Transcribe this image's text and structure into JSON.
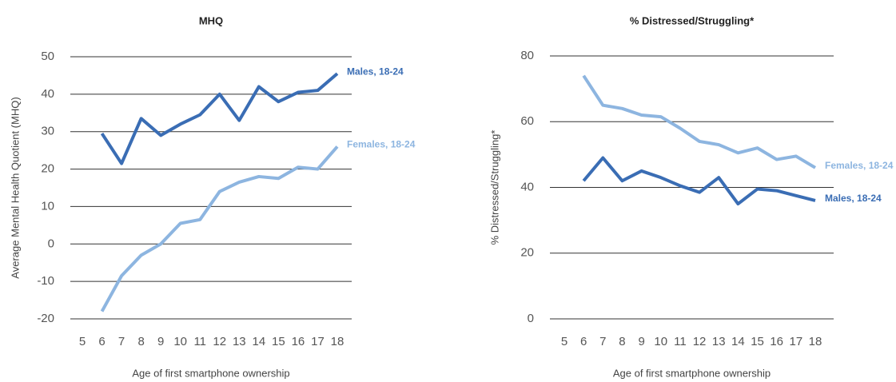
{
  "chart_data": [
    {
      "type": "line",
      "title": "MHQ",
      "x_label": "Age of first smartphone ownership",
      "y_label": "Average Mental Health Quotient (MHQ)",
      "x": [
        6,
        7,
        8,
        9,
        10,
        11,
        12,
        13,
        14,
        15,
        16,
        17,
        18
      ],
      "series": [
        {
          "name": "Males, 18-24",
          "color": "#3a6db4",
          "values": [
            29.5,
            21.5,
            33.5,
            29,
            32,
            34.5,
            40,
            33,
            42,
            38,
            40.5,
            41,
            45.5
          ]
        },
        {
          "name": "Females, 18-24",
          "color": "#8db5e0",
          "values": [
            -18,
            -8.5,
            -3,
            0,
            5.5,
            6.5,
            14,
            16.5,
            18,
            17.5,
            20.5,
            20,
            26
          ]
        }
      ],
      "xlim": [
        5,
        18
      ],
      "xticks": [
        5,
        6,
        7,
        8,
        9,
        10,
        11,
        12,
        13,
        14,
        15,
        16,
        17,
        18
      ],
      "ylim": [
        -20,
        50
      ],
      "yticks": [
        -20,
        -10,
        0,
        10,
        20,
        30,
        40,
        50
      ],
      "grid": true
    },
    {
      "type": "line",
      "title": "% Distressed/Struggling*",
      "x_label": "Age of first smartphone ownership",
      "y_label": "% Distressed/Struggling*",
      "x": [
        6,
        7,
        8,
        9,
        10,
        11,
        12,
        13,
        14,
        15,
        16,
        17,
        18
      ],
      "series": [
        {
          "name": "Females, 18-24",
          "color": "#8db5e0",
          "values": [
            74,
            65,
            64,
            62,
            61.5,
            58,
            54,
            53,
            50.5,
            52,
            48.5,
            49.5,
            46
          ]
        },
        {
          "name": "Males, 18-24",
          "color": "#3a6db4",
          "values": [
            42,
            49,
            42,
            45,
            43,
            40.5,
            38.5,
            43,
            35,
            39.5,
            39,
            37.5,
            36
          ]
        }
      ],
      "xlim": [
        5,
        18
      ],
      "xticks": [
        5,
        6,
        7,
        8,
        9,
        10,
        11,
        12,
        13,
        14,
        15,
        16,
        17,
        18
      ],
      "ylim": [
        0,
        80
      ],
      "yticks": [
        0,
        20,
        40,
        60,
        80
      ],
      "grid": true
    }
  ]
}
